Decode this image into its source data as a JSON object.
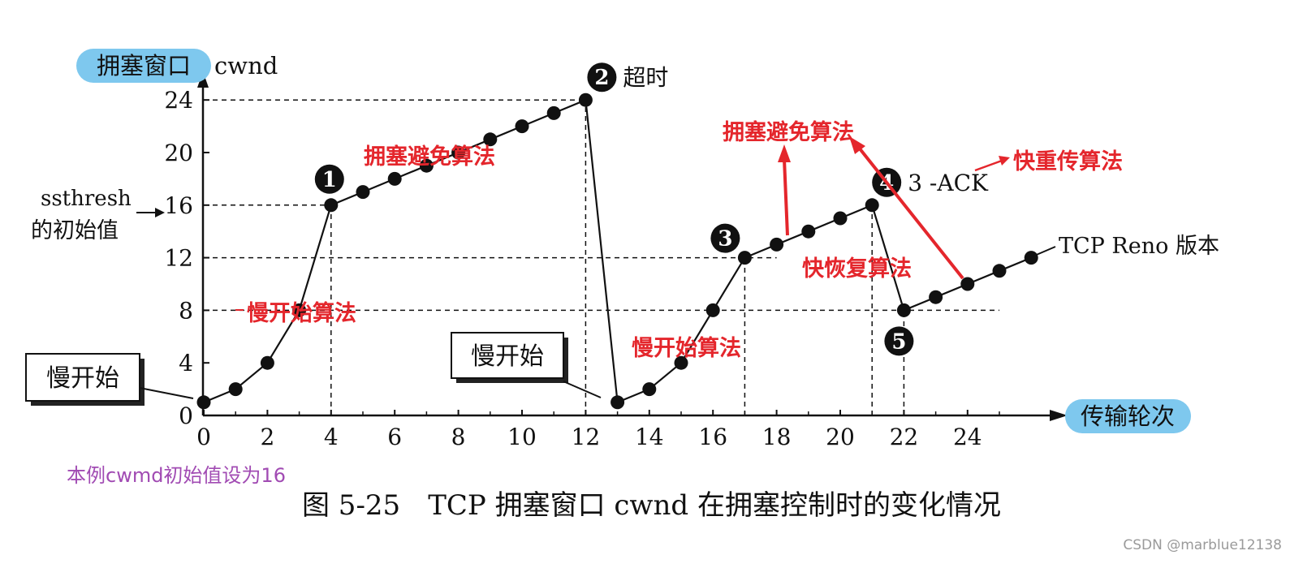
{
  "chart_data": {
    "type": "line",
    "title": "图 5-25　TCP 拥塞窗口 cwnd 在拥塞控制时的变化情况",
    "xlabel": "传输轮次",
    "ylabel": "拥塞窗口",
    "ylabel_unit": "cwnd",
    "xlim": [
      0,
      28
    ],
    "ylim": [
      0,
      26
    ],
    "x_ticks": [
      0,
      2,
      4,
      6,
      8,
      10,
      12,
      14,
      16,
      18,
      20,
      22,
      24
    ],
    "y_ticks": [
      0,
      4,
      8,
      12,
      16,
      20,
      24
    ],
    "grid": false,
    "series": [
      {
        "points": [
          [
            0,
            1
          ],
          [
            1,
            2
          ],
          [
            2,
            4
          ],
          [
            3,
            8
          ],
          [
            4,
            16
          ],
          [
            5,
            17
          ],
          [
            6,
            18
          ],
          [
            7,
            19
          ],
          [
            8,
            20
          ],
          [
            9,
            21
          ],
          [
            10,
            22
          ],
          [
            11,
            23
          ],
          [
            12,
            24
          ],
          [
            13,
            1
          ],
          [
            14,
            2
          ],
          [
            15,
            4
          ],
          [
            16,
            8
          ],
          [
            17,
            12
          ],
          [
            18,
            13
          ],
          [
            19,
            14
          ],
          [
            20,
            15
          ],
          [
            21,
            16
          ],
          [
            22,
            8
          ],
          [
            23,
            9
          ],
          [
            24,
            10
          ],
          [
            25,
            11
          ],
          [
            26,
            12
          ]
        ]
      }
    ],
    "reference_lines": [
      {
        "y": 24,
        "x_from": 0,
        "x_to": 12
      },
      {
        "y": 16,
        "x_from": 0,
        "x_to": 4
      },
      {
        "y": 12,
        "x_from": 0,
        "x_to": 18
      },
      {
        "y": 8,
        "x_from": 0,
        "x_to": 25
      },
      {
        "x": 4,
        "y_to": 16
      },
      {
        "x": 12,
        "y_to": 24
      },
      {
        "x": 17,
        "y_to": 12
      },
      {
        "x": 21,
        "y_to": 16
      },
      {
        "x": 22,
        "y_to": 8
      }
    ],
    "markers": [
      {
        "num": "1",
        "x": 4,
        "y": 16
      },
      {
        "num": "2",
        "x": 12,
        "y": 24,
        "label": "超时"
      },
      {
        "num": "3",
        "x": 17,
        "y": 12
      },
      {
        "num": "4",
        "x": 21,
        "y": 16,
        "label": "3 -ACK"
      },
      {
        "num": "5",
        "x": 22,
        "y": 8
      }
    ],
    "annotations": {
      "ssthresh_line1": "ssthresh",
      "ssthresh_line2": "的初始值",
      "slow_start_box_1": "慢开始",
      "slow_start_box_2": "慢开始",
      "version_label": "TCP Reno 版本",
      "red_labels": [
        {
          "text": "拥塞避免算法",
          "where": "first congestion-avoidance segment"
        },
        {
          "text": "拥塞避免算法",
          "where": "second congestion-avoidance segment"
        },
        {
          "text": "快重传算法",
          "where": "top-right"
        },
        {
          "text": "快恢复算法",
          "where": "near point 5"
        },
        {
          "text": "慢开始算法",
          "where": "first slow start"
        },
        {
          "text": "慢开始算法",
          "where": "second slow start"
        }
      ]
    },
    "colors": {
      "line": "#111111",
      "annotation_red": "#e4262c",
      "pill_blue": "#7ec8ee",
      "note_purple": "#a14bb3"
    }
  },
  "note": "本例cwmd初始值设为16",
  "watermark": "CSDN @marblue12138"
}
